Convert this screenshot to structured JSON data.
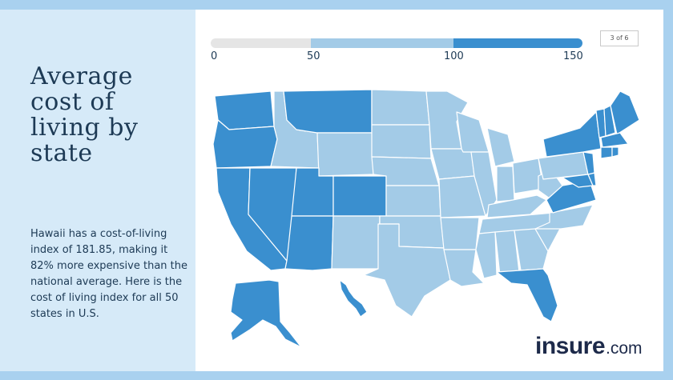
{
  "title": "Average cost of living by state",
  "description": "Hawaii has a cost-of-living index of 181.85, making it 82% more expensive than the national average. Here is the cost of living index for all 50 states in U.S.",
  "page_indicator": "3 of 6",
  "legend": {
    "ticks": [
      "0",
      "50",
      "100",
      "150"
    ],
    "colors": {
      "low": "#e5e5e5",
      "mid": "#a3cbe7",
      "high": "#3a8fcf"
    }
  },
  "logo": {
    "brand": "insure",
    "suffix": ".com"
  },
  "map": {
    "high_states": [
      "WA",
      "OR",
      "CA",
      "NV",
      "UT",
      "CO",
      "AZ",
      "MT",
      "AK",
      "HI",
      "NY",
      "VT",
      "NH",
      "ME",
      "MA",
      "RI",
      "CT",
      "NJ",
      "DE",
      "MD",
      "VA",
      "FL"
    ],
    "mid_states": [
      "ID",
      "WY",
      "ND",
      "SD",
      "NE",
      "KS",
      "OK",
      "TX",
      "NM",
      "MN",
      "IA",
      "MO",
      "AR",
      "LA",
      "WI",
      "IL",
      "MI",
      "IN",
      "OH",
      "KY",
      "TN",
      "MS",
      "AL",
      "GA",
      "SC",
      "NC",
      "WV",
      "PA"
    ]
  }
}
